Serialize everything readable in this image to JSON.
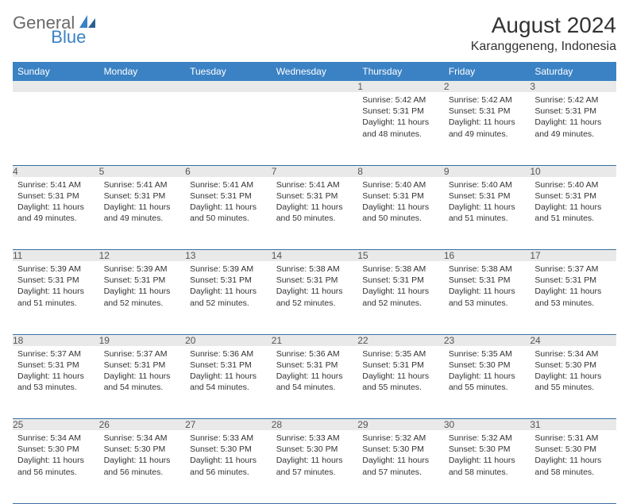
{
  "logo": {
    "part1": "General",
    "part2": "Blue"
  },
  "title": "August 2024",
  "subtitle": "Karanggeneng, Indonesia",
  "colors": {
    "header_bg": "#3b82c4",
    "header_text": "#ffffff",
    "daynum_bg": "#e9e9e9",
    "border": "#3b6fa0",
    "body_text": "#333333",
    "logo_gray": "#6a6a6a",
    "logo_blue": "#3b82c4"
  },
  "weekdays": [
    "Sunday",
    "Monday",
    "Tuesday",
    "Wednesday",
    "Thursday",
    "Friday",
    "Saturday"
  ],
  "weeks": [
    [
      null,
      null,
      null,
      null,
      {
        "n": "1",
        "sr": "5:42 AM",
        "ss": "5:31 PM",
        "dl": "11 hours and 48 minutes."
      },
      {
        "n": "2",
        "sr": "5:42 AM",
        "ss": "5:31 PM",
        "dl": "11 hours and 49 minutes."
      },
      {
        "n": "3",
        "sr": "5:42 AM",
        "ss": "5:31 PM",
        "dl": "11 hours and 49 minutes."
      }
    ],
    [
      {
        "n": "4",
        "sr": "5:41 AM",
        "ss": "5:31 PM",
        "dl": "11 hours and 49 minutes."
      },
      {
        "n": "5",
        "sr": "5:41 AM",
        "ss": "5:31 PM",
        "dl": "11 hours and 49 minutes."
      },
      {
        "n": "6",
        "sr": "5:41 AM",
        "ss": "5:31 PM",
        "dl": "11 hours and 50 minutes."
      },
      {
        "n": "7",
        "sr": "5:41 AM",
        "ss": "5:31 PM",
        "dl": "11 hours and 50 minutes."
      },
      {
        "n": "8",
        "sr": "5:40 AM",
        "ss": "5:31 PM",
        "dl": "11 hours and 50 minutes."
      },
      {
        "n": "9",
        "sr": "5:40 AM",
        "ss": "5:31 PM",
        "dl": "11 hours and 51 minutes."
      },
      {
        "n": "10",
        "sr": "5:40 AM",
        "ss": "5:31 PM",
        "dl": "11 hours and 51 minutes."
      }
    ],
    [
      {
        "n": "11",
        "sr": "5:39 AM",
        "ss": "5:31 PM",
        "dl": "11 hours and 51 minutes."
      },
      {
        "n": "12",
        "sr": "5:39 AM",
        "ss": "5:31 PM",
        "dl": "11 hours and 52 minutes."
      },
      {
        "n": "13",
        "sr": "5:39 AM",
        "ss": "5:31 PM",
        "dl": "11 hours and 52 minutes."
      },
      {
        "n": "14",
        "sr": "5:38 AM",
        "ss": "5:31 PM",
        "dl": "11 hours and 52 minutes."
      },
      {
        "n": "15",
        "sr": "5:38 AM",
        "ss": "5:31 PM",
        "dl": "11 hours and 52 minutes."
      },
      {
        "n": "16",
        "sr": "5:38 AM",
        "ss": "5:31 PM",
        "dl": "11 hours and 53 minutes."
      },
      {
        "n": "17",
        "sr": "5:37 AM",
        "ss": "5:31 PM",
        "dl": "11 hours and 53 minutes."
      }
    ],
    [
      {
        "n": "18",
        "sr": "5:37 AM",
        "ss": "5:31 PM",
        "dl": "11 hours and 53 minutes."
      },
      {
        "n": "19",
        "sr": "5:37 AM",
        "ss": "5:31 PM",
        "dl": "11 hours and 54 minutes."
      },
      {
        "n": "20",
        "sr": "5:36 AM",
        "ss": "5:31 PM",
        "dl": "11 hours and 54 minutes."
      },
      {
        "n": "21",
        "sr": "5:36 AM",
        "ss": "5:31 PM",
        "dl": "11 hours and 54 minutes."
      },
      {
        "n": "22",
        "sr": "5:35 AM",
        "ss": "5:31 PM",
        "dl": "11 hours and 55 minutes."
      },
      {
        "n": "23",
        "sr": "5:35 AM",
        "ss": "5:30 PM",
        "dl": "11 hours and 55 minutes."
      },
      {
        "n": "24",
        "sr": "5:34 AM",
        "ss": "5:30 PM",
        "dl": "11 hours and 55 minutes."
      }
    ],
    [
      {
        "n": "25",
        "sr": "5:34 AM",
        "ss": "5:30 PM",
        "dl": "11 hours and 56 minutes."
      },
      {
        "n": "26",
        "sr": "5:34 AM",
        "ss": "5:30 PM",
        "dl": "11 hours and 56 minutes."
      },
      {
        "n": "27",
        "sr": "5:33 AM",
        "ss": "5:30 PM",
        "dl": "11 hours and 56 minutes."
      },
      {
        "n": "28",
        "sr": "5:33 AM",
        "ss": "5:30 PM",
        "dl": "11 hours and 57 minutes."
      },
      {
        "n": "29",
        "sr": "5:32 AM",
        "ss": "5:30 PM",
        "dl": "11 hours and 57 minutes."
      },
      {
        "n": "30",
        "sr": "5:32 AM",
        "ss": "5:30 PM",
        "dl": "11 hours and 58 minutes."
      },
      {
        "n": "31",
        "sr": "5:31 AM",
        "ss": "5:30 PM",
        "dl": "11 hours and 58 minutes."
      }
    ]
  ],
  "labels": {
    "sunrise": "Sunrise:",
    "sunset": "Sunset:",
    "daylight": "Daylight:"
  }
}
